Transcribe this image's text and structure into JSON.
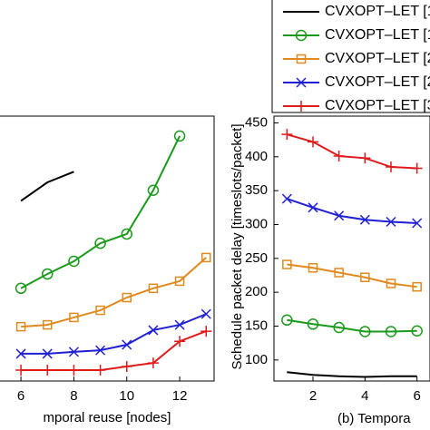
{
  "chart_data": [
    {
      "type": "line",
      "xlabel": "mporal reuse [nodes]",
      "xlim": [
        5.14,
        13.3
      ],
      "xticks": [
        6,
        8,
        10,
        12
      ],
      "ylim": [
        0,
        100
      ],
      "series": [
        {
          "name": "CVXOPT–LET [1",
          "color": "#000000",
          "marker": "none",
          "x": [
            6,
            7,
            8
          ],
          "values": [
            68,
            75,
            79
          ]
        },
        {
          "name": "CVXOPT–LET [1",
          "color": "#1a9a1a",
          "marker": "circle",
          "x": [
            6,
            7,
            8,
            9,
            10,
            11,
            12
          ],
          "values": [
            35,
            40.4,
            45.2,
            52,
            55.5,
            72,
            92.5
          ]
        },
        {
          "name": "CVXOPT–LET [2",
          "color": "#e08a1e",
          "marker": "square",
          "x": [
            6,
            7,
            8,
            9,
            10,
            11,
            12,
            13
          ],
          "values": [
            20.5,
            21.2,
            24,
            26.7,
            31.5,
            35,
            37.7,
            46.6
          ]
        },
        {
          "name": "CVXOPT–LET [2",
          "color": "#1f1fd6",
          "marker": "x",
          "x": [
            6,
            7,
            8,
            9,
            10,
            11,
            12,
            13
          ],
          "values": [
            10.3,
            10.3,
            11,
            11.6,
            13.7,
            19.2,
            21.2,
            25.3
          ]
        },
        {
          "name": "CVXOPT–LET [3",
          "color": "#e01a1a",
          "marker": "plus",
          "x": [
            6,
            7,
            8,
            9,
            10,
            11,
            12,
            13
          ],
          "values": [
            4.1,
            4.1,
            4.1,
            4.1,
            5.5,
            6.8,
            15,
            18.8
          ]
        }
      ]
    },
    {
      "type": "line",
      "xlabel": "(b) Tempora",
      "ylabel": "Schedule packet delay [timeslots/packet]",
      "xlim": [
        0.5,
        6.5
      ],
      "xticks": [
        2,
        4,
        6
      ],
      "ylim": [
        69,
        460
      ],
      "yticks": [
        100,
        150,
        200,
        250,
        300,
        350,
        400,
        450
      ],
      "series": [
        {
          "color": "#000000",
          "marker": "none",
          "x": [
            1,
            2,
            3,
            4,
            5,
            6
          ],
          "values": [
            82,
            78,
            76,
            75,
            76,
            76
          ]
        },
        {
          "color": "#1a9a1a",
          "marker": "circle",
          "x": [
            1,
            2,
            3,
            4,
            5,
            6
          ],
          "values": [
            159,
            153,
            148,
            142,
            142,
            143
          ]
        },
        {
          "color": "#e08a1e",
          "marker": "square",
          "x": [
            1,
            2,
            3,
            4,
            5,
            6
          ],
          "values": [
            241,
            236,
            229,
            222,
            213,
            208
          ]
        },
        {
          "color": "#1f1fd6",
          "marker": "x",
          "x": [
            1,
            2,
            3,
            4,
            5,
            6
          ],
          "values": [
            338,
            325,
            313,
            307,
            304,
            302
          ]
        },
        {
          "color": "#e01a1a",
          "marker": "plus",
          "x": [
            1,
            2,
            3,
            4,
            5,
            6
          ],
          "values": [
            433,
            422,
            401,
            398,
            385,
            383
          ]
        }
      ]
    }
  ]
}
